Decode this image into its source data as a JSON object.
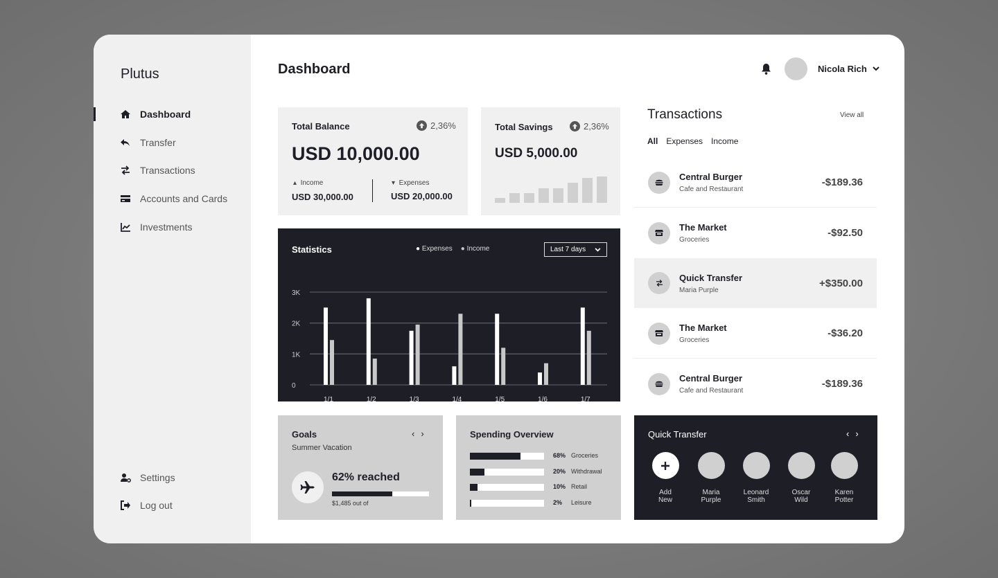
{
  "app": {
    "name": "Plutus"
  },
  "sidebar": {
    "items": [
      {
        "label": "Dashboard",
        "icon": "home-icon",
        "active": true
      },
      {
        "label": "Transfer",
        "icon": "reply-icon"
      },
      {
        "label": "Transactions",
        "icon": "swap-icon"
      },
      {
        "label": "Accounts and Cards",
        "icon": "card-icon"
      },
      {
        "label": "Investments",
        "icon": "chart-line-icon"
      }
    ],
    "bottom": [
      {
        "label": "Settings",
        "icon": "user-cog-icon"
      },
      {
        "label": "Log out",
        "icon": "logout-icon"
      }
    ]
  },
  "header": {
    "title": "Dashboard",
    "user": "Nicola Rich"
  },
  "balance": {
    "title": "Total Balance",
    "change": "2,36%",
    "amount": "USD 10,000.00",
    "income_label": "Income",
    "income": "USD 30,000.00",
    "expenses_label": "Expenses",
    "expenses": "USD 20,000.00"
  },
  "savings": {
    "title": "Total Savings",
    "change": "2,36%",
    "amount": "USD 5,000.00",
    "trend": [
      1,
      2,
      2,
      3,
      3,
      4,
      5,
      5.3
    ]
  },
  "chart_data": {
    "type": "bar",
    "title": "Statistics",
    "range_select": "Last 7 days",
    "categories": [
      "1/1",
      "1/2",
      "1/3",
      "1/4",
      "1/5",
      "1/6",
      "1/7"
    ],
    "series": [
      {
        "name": "Expenses",
        "color": "#ffffff",
        "values": [
          2500,
          2800,
          1750,
          600,
          2300,
          400,
          2500
        ]
      },
      {
        "name": "Income",
        "color": "#c8c8c8",
        "values": [
          1450,
          850,
          1950,
          2300,
          1200,
          700,
          1750
        ]
      }
    ],
    "yticks": [
      "0",
      "1K",
      "2K",
      "3K"
    ],
    "ylim": [
      0,
      3000
    ],
    "grid": true,
    "legend": "top-center"
  },
  "transactions": {
    "title": "Transactions",
    "view_all": "View all",
    "tabs": [
      "All",
      "Expenses",
      "Income"
    ],
    "items": [
      {
        "name": "Central Burger",
        "category": "Cafe and Restaurant",
        "amount": "-$189.36",
        "icon": "burger-icon"
      },
      {
        "name": "The Market",
        "category": "Groceries",
        "amount": "-$92.50",
        "icon": "store-icon"
      },
      {
        "name": "Quick Transfer",
        "category": "Maria Purple",
        "amount": "+$350.00",
        "icon": "swap-icon",
        "highlighted": true
      },
      {
        "name": "The Market",
        "category": "Groceries",
        "amount": "-$36.20",
        "icon": "store-icon"
      },
      {
        "name": "Central Burger",
        "category": "Cafe and Restaurant",
        "amount": "-$189.36",
        "icon": "burger-icon"
      }
    ]
  },
  "goals": {
    "title": "Goals",
    "goal": "Summer Vacation",
    "reached": "62% reached",
    "progress": 62,
    "amount": "$1,485 out of"
  },
  "spending": {
    "title": "Spending Overview",
    "items": [
      {
        "pct": "68%",
        "value": 68,
        "label": "Groceries"
      },
      {
        "pct": "20%",
        "value": 20,
        "label": "Withdrawal"
      },
      {
        "pct": "10%",
        "value": 10,
        "label": "Retail"
      },
      {
        "pct": "2%",
        "value": 2,
        "label": "Leisure"
      }
    ]
  },
  "quick_transfer": {
    "title": "Quick Transfer",
    "contacts": [
      {
        "line1": "Add",
        "line2": "New"
      },
      {
        "line1": "Maria",
        "line2": "Purple"
      },
      {
        "line1": "Leonard",
        "line2": "Smith"
      },
      {
        "line1": "Oscar",
        "line2": "Wild"
      },
      {
        "line1": "Karen",
        "line2": "Potter"
      }
    ]
  }
}
